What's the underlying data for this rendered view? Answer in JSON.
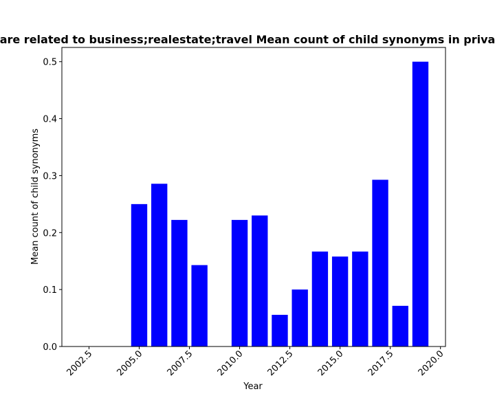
{
  "chart_data": {
    "type": "bar",
    "title": "are related to business;realestate;travel Mean count of child synonyms in priva",
    "xlabel": "Year",
    "ylabel": "Mean count of child synonyms",
    "x": [
      2005,
      2006,
      2007,
      2008,
      2010,
      2011,
      2012,
      2013,
      2014,
      2015,
      2016,
      2017,
      2018,
      2019
    ],
    "values": [
      0.25,
      0.2857,
      0.2222,
      0.1429,
      0.2222,
      0.23,
      0.0556,
      0.1,
      0.1667,
      0.1579,
      0.1667,
      0.2927,
      0.0714,
      0.5
    ],
    "xlim": [
      2001.15,
      2020.25
    ],
    "ylim": [
      0,
      0.525
    ],
    "xticks": [
      2002.5,
      2005.0,
      2007.5,
      2010.0,
      2012.5,
      2015.0,
      2017.5,
      2020.0
    ],
    "xtick_labels": [
      "2002.5",
      "2005.0",
      "2007.5",
      "2010.0",
      "2012.5",
      "2015.0",
      "2017.5",
      "2020.0"
    ],
    "yticks": [
      0.0,
      0.1,
      0.2,
      0.3,
      0.4,
      0.5
    ],
    "ytick_labels": [
      "0.0",
      "0.1",
      "0.2",
      "0.3",
      "0.4",
      "0.5"
    ],
    "bar_color": "#0000ff",
    "grid": false,
    "legend": "none"
  }
}
